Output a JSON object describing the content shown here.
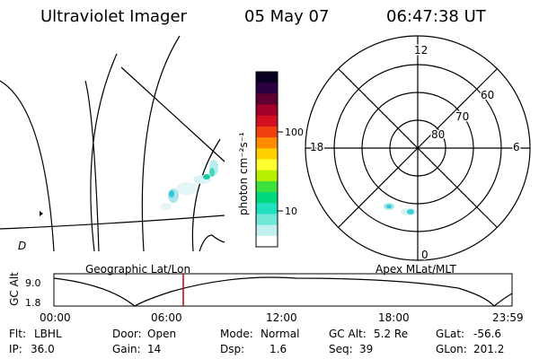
{
  "header": {
    "instrument": "Ultraviolet Imager",
    "date": "05 May 07",
    "time": "06:47:38 UT"
  },
  "map_panel": {
    "label": "Geographic Lat/Lon",
    "glyph": "D"
  },
  "color_bar": {
    "axis_label": "photon cm⁻²s⁻¹",
    "ticks": [
      "100",
      "10"
    ],
    "colors": [
      "#0a0020",
      "#2a0040",
      "#600030",
      "#a0002a",
      "#d01020",
      "#f04010",
      "#ff8c00",
      "#ffd000",
      "#ffff30",
      "#b8f000",
      "#40e040",
      "#00d880",
      "#20e0c0",
      "#70e8d8",
      "#c0f0f0",
      "#ffffff"
    ]
  },
  "polar_panel": {
    "label": "Apex MLat/MLT",
    "mlt_labels": {
      "top": "12",
      "left": "18",
      "right": "6",
      "bottom": "0"
    },
    "mlat_labels": [
      "60",
      "70",
      "80"
    ]
  },
  "alt_plot": {
    "ylabel": "GC Alt",
    "yticks": [
      "9.0",
      "1.8"
    ],
    "xticks": [
      "00:00",
      "06:00",
      "12:00",
      "18:00",
      "23:59"
    ],
    "current_time_marker": "06:47"
  },
  "status": {
    "row1": [
      {
        "key": "Flt:",
        "value": "LBHL"
      },
      {
        "key": "Door:",
        "value": "Open"
      },
      {
        "key": "Mode:",
        "value": "Normal"
      },
      {
        "key": "GC Alt:",
        "value": "5.2 Re"
      },
      {
        "key": "GLat:",
        "value": "-56.6"
      }
    ],
    "row2": [
      {
        "key": "IP:",
        "value": "36.0"
      },
      {
        "key": "Gain:",
        "value": "14"
      },
      {
        "key": "Dsp:",
        "value": "1.6"
      },
      {
        "key": "Seq:",
        "value": "39"
      },
      {
        "key": "GLon:",
        "value": "201.2"
      }
    ]
  }
}
